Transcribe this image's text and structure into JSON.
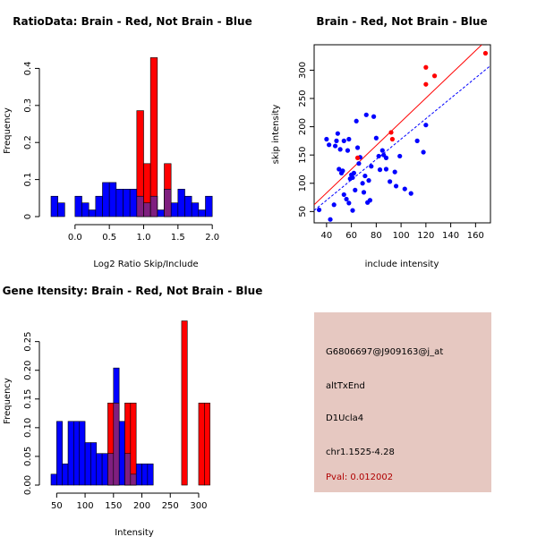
{
  "colors": {
    "red": "#ff0000",
    "blue": "#0000ff",
    "overlap": "#7f1f7f",
    "bg_panel": "#e6c8c1",
    "pval": "#b00000"
  },
  "chart_data": [
    {
      "type": "histogram",
      "title": "RatioData: Brain - Red, Not Brain - Blue",
      "xlabel": "Log2 Ratio Skip/Include",
      "ylabel": "Frequency",
      "xlim": [
        -0.35,
        2.05
      ],
      "ylim": [
        0,
        0.43
      ],
      "xticks": [
        0.0,
        0.5,
        1.0,
        1.5,
        2.0
      ],
      "xtick_labels": [
        "0.0",
        "0.5",
        "1.0",
        "1.5",
        "2.0"
      ],
      "yticks": [
        0,
        0.1,
        0.2,
        0.3,
        0.4
      ],
      "ytick_labels": [
        "0",
        "0.1",
        "0.2",
        "0.3",
        "0.4"
      ],
      "bin_width": 0.1,
      "series": [
        {
          "name": "Not Brain",
          "color": "blue",
          "bins": [
            {
              "x": -0.35,
              "v": 0.055
            },
            {
              "x": -0.25,
              "v": 0.037
            },
            {
              "x": 0.0,
              "v": 0.055
            },
            {
              "x": 0.1,
              "v": 0.037
            },
            {
              "x": 0.2,
              "v": 0.018
            },
            {
              "x": 0.3,
              "v": 0.055
            },
            {
              "x": 0.4,
              "v": 0.092
            },
            {
              "x": 0.5,
              "v": 0.092
            },
            {
              "x": 0.6,
              "v": 0.074
            },
            {
              "x": 0.7,
              "v": 0.074
            },
            {
              "x": 0.8,
              "v": 0.074
            },
            {
              "x": 0.9,
              "v": 0.055
            },
            {
              "x": 1.0,
              "v": 0.037
            },
            {
              "x": 1.1,
              "v": 0.055
            },
            {
              "x": 1.2,
              "v": 0.018
            },
            {
              "x": 1.3,
              "v": 0.074
            },
            {
              "x": 1.4,
              "v": 0.037
            },
            {
              "x": 1.5,
              "v": 0.074
            },
            {
              "x": 1.6,
              "v": 0.055
            },
            {
              "x": 1.7,
              "v": 0.037
            },
            {
              "x": 1.8,
              "v": 0.018
            },
            {
              "x": 1.9,
              "v": 0.055
            }
          ]
        },
        {
          "name": "Brain",
          "color": "red",
          "bins": [
            {
              "x": 0.9,
              "v": 0.286
            },
            {
              "x": 1.0,
              "v": 0.143
            },
            {
              "x": 1.1,
              "v": 0.429
            },
            {
              "x": 1.3,
              "v": 0.143
            }
          ]
        }
      ]
    },
    {
      "type": "scatter",
      "title": "Brain - Red, Not Brain - Blue",
      "xlabel": "include intensity",
      "ylabel": "skip intensity",
      "xlim": [
        30,
        172
      ],
      "ylim": [
        30,
        345
      ],
      "xticks": [
        40,
        60,
        80,
        100,
        120,
        140,
        160
      ],
      "xtick_labels": [
        "40",
        "60",
        "80",
        "100",
        "120",
        "140",
        "160"
      ],
      "yticks": [
        50,
        100,
        150,
        200,
        250,
        300
      ],
      "ytick_labels": [
        "50",
        "100",
        "150",
        "200",
        "250",
        "300"
      ],
      "series": [
        {
          "name": "Not Brain",
          "color": "blue",
          "points": [
            [
              34,
              53
            ],
            [
              40,
              178
            ],
            [
              42,
              168
            ],
            [
              43,
              36
            ],
            [
              46,
              62
            ],
            [
              47,
              166
            ],
            [
              48,
              175
            ],
            [
              49,
              188
            ],
            [
              50,
              125
            ],
            [
              51,
              160
            ],
            [
              52,
              118
            ],
            [
              53,
              122
            ],
            [
              54,
              175
            ],
            [
              54,
              80
            ],
            [
              56,
              72
            ],
            [
              57,
              158
            ],
            [
              58,
              178
            ],
            [
              58,
              65
            ],
            [
              59,
              108
            ],
            [
              60,
              115
            ],
            [
              61,
              52
            ],
            [
              61,
              110
            ],
            [
              62,
              118
            ],
            [
              63,
              88
            ],
            [
              64,
              210
            ],
            [
              65,
              163
            ],
            [
              66,
              135
            ],
            [
              67,
              146
            ],
            [
              69,
              100
            ],
            [
              70,
              84
            ],
            [
              71,
              113
            ],
            [
              72,
              221
            ],
            [
              73,
              66
            ],
            [
              74,
              105
            ],
            [
              75,
              70
            ],
            [
              76,
              130
            ],
            [
              78,
              218
            ],
            [
              80,
              180
            ],
            [
              82,
              148
            ],
            [
              83,
              124
            ],
            [
              85,
              158
            ],
            [
              86,
              150
            ],
            [
              88,
              145
            ],
            [
              88,
              125
            ],
            [
              91,
              103
            ],
            [
              95,
              120
            ],
            [
              96,
              95
            ],
            [
              99,
              148
            ],
            [
              103,
              90
            ],
            [
              108,
              82
            ],
            [
              113,
              175
            ],
            [
              118,
              155
            ],
            [
              120,
              203
            ]
          ]
        },
        {
          "name": "Brain",
          "color": "red",
          "points": [
            [
              65,
              145
            ],
            [
              92,
              190
            ],
            [
              93,
              178
            ],
            [
              120,
              305
            ],
            [
              120,
              275
            ],
            [
              127,
              290
            ],
            [
              168,
              330
            ]
          ]
        }
      ],
      "fit_lines": [
        {
          "name": "Brain fit",
          "color": "red",
          "line": "solid",
          "from": [
            30,
            62
          ],
          "to": [
            165,
            345
          ]
        },
        {
          "name": "Not Brain fit",
          "color": "blue",
          "line": "dashed",
          "from": [
            30,
            52
          ],
          "to": [
            172,
            308
          ]
        }
      ]
    },
    {
      "type": "histogram",
      "title": "Gene Itensity: Brain - Red, Not Brain - Blue",
      "xlabel": "Intensity",
      "ylabel": "Frequency",
      "xlim": [
        40,
        330
      ],
      "ylim": [
        0,
        0.29
      ],
      "xticks": [
        50,
        100,
        150,
        200,
        250,
        300
      ],
      "xtick_labels": [
        "50",
        "100",
        "150",
        "200",
        "250",
        "300"
      ],
      "yticks": [
        0,
        0.05,
        0.1,
        0.15,
        0.2,
        0.25
      ],
      "ytick_labels": [
        "0.00",
        "0.05",
        "0.10",
        "0.15",
        "0.20",
        "0.25"
      ],
      "bin_width": 10,
      "series": [
        {
          "name": "Not Brain",
          "color": "blue",
          "bins": [
            {
              "x": 40,
              "v": 0.019
            },
            {
              "x": 50,
              "v": 0.111
            },
            {
              "x": 60,
              "v": 0.037
            },
            {
              "x": 70,
              "v": 0.111
            },
            {
              "x": 80,
              "v": 0.111
            },
            {
              "x": 90,
              "v": 0.111
            },
            {
              "x": 100,
              "v": 0.074
            },
            {
              "x": 110,
              "v": 0.074
            },
            {
              "x": 120,
              "v": 0.055
            },
            {
              "x": 130,
              "v": 0.055
            },
            {
              "x": 140,
              "v": 0.055
            },
            {
              "x": 150,
              "v": 0.204
            },
            {
              "x": 160,
              "v": 0.111
            },
            {
              "x": 170,
              "v": 0.055
            },
            {
              "x": 180,
              "v": 0.019
            },
            {
              "x": 190,
              "v": 0.037
            },
            {
              "x": 200,
              "v": 0.037
            },
            {
              "x": 210,
              "v": 0.037
            }
          ]
        },
        {
          "name": "Brain",
          "color": "red",
          "bins": [
            {
              "x": 140,
              "v": 0.143
            },
            {
              "x": 150,
              "v": 0.143
            },
            {
              "x": 170,
              "v": 0.143
            },
            {
              "x": 180,
              "v": 0.143
            },
            {
              "x": 270,
              "v": 0.286
            },
            {
              "x": 300,
              "v": 0.143
            },
            {
              "x": 310,
              "v": 0.143
            }
          ]
        }
      ]
    }
  ],
  "info_panel": {
    "probe_id": "G6806697@J909163@j_at",
    "event_type": "altTxEnd",
    "gene": "D1Ucla4",
    "location": "chr1.1525-4.28",
    "pval": "Pval: 0.012002"
  }
}
